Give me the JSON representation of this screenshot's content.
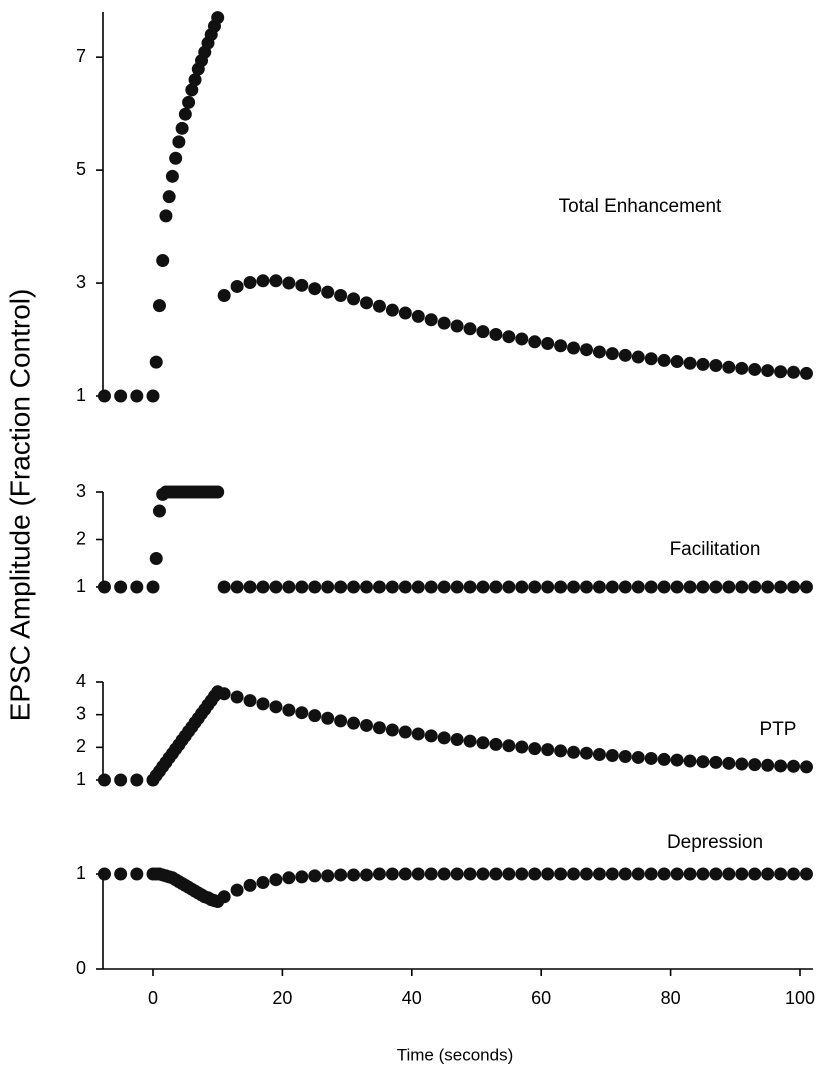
{
  "ylabel": "EPSC Amplitude (Fraction Control)",
  "chart_data": [
    {
      "type": "scatter",
      "label": "Total Enhancement",
      "color": "#111111",
      "xlim": [
        -8,
        102
      ],
      "ylim": [
        1,
        7.8
      ],
      "yticks": [
        1,
        3,
        5,
        7
      ],
      "x": [
        -7.5,
        -5,
        -2.5,
        0,
        0.5,
        1,
        1.5,
        2,
        2.5,
        3,
        3.5,
        4,
        4.5,
        5,
        5.5,
        6,
        6.5,
        7,
        7.5,
        8,
        8.5,
        9,
        9.5,
        10,
        11,
        13,
        15,
        17,
        19,
        21,
        23,
        25,
        27,
        29,
        31,
        33,
        35,
        37,
        39,
        41,
        43,
        45,
        47,
        49,
        51,
        53,
        55,
        57,
        59,
        61,
        63,
        65,
        67,
        69,
        71,
        73,
        75,
        77,
        79,
        81,
        83,
        85,
        87,
        89,
        91,
        93,
        95,
        97,
        99,
        101
      ],
      "values": [
        1,
        1,
        1,
        1,
        1.6,
        2.6,
        3.4,
        4.19,
        4.53,
        4.89,
        5.21,
        5.5,
        5.74,
        5.99,
        6.2,
        6.42,
        6.6,
        6.79,
        6.94,
        7.09,
        7.25,
        7.4,
        7.55,
        7.7,
        2.78,
        2.94,
        3.01,
        3.04,
        3.04,
        3.0,
        2.96,
        2.9,
        2.84,
        2.78,
        2.72,
        2.65,
        2.59,
        2.52,
        2.47,
        2.41,
        2.35,
        2.29,
        2.24,
        2.19,
        2.14,
        2.09,
        2.05,
        2.01,
        1.96,
        1.93,
        1.89,
        1.85,
        1.82,
        1.78,
        1.75,
        1.72,
        1.69,
        1.66,
        1.63,
        1.61,
        1.58,
        1.56,
        1.54,
        1.51,
        1.49,
        1.47,
        1.45,
        1.43,
        1.42,
        1.4
      ]
    },
    {
      "type": "scatter",
      "label": "Facilitation",
      "color": "#111111",
      "xlim": [
        -8,
        102
      ],
      "ylim": [
        1,
        3
      ],
      "yticks": [
        1,
        2,
        3
      ],
      "x": [
        -7.5,
        -5,
        -2.5,
        0,
        0.5,
        1,
        1.5,
        2,
        2.5,
        3,
        3.5,
        4,
        4.5,
        5,
        5.5,
        6,
        6.5,
        7,
        7.5,
        8,
        8.5,
        9,
        9.5,
        10,
        11,
        13,
        15,
        17,
        19,
        21,
        23,
        25,
        27,
        29,
        31,
        33,
        35,
        37,
        39,
        41,
        43,
        45,
        47,
        49,
        51,
        53,
        55,
        57,
        59,
        61,
        63,
        65,
        67,
        69,
        71,
        73,
        75,
        77,
        79,
        81,
        83,
        85,
        87,
        89,
        91,
        93,
        95,
        97,
        99,
        101
      ],
      "values": [
        1,
        1,
        1,
        1,
        1.6,
        2.6,
        2.95,
        3,
        3,
        3,
        3,
        3,
        3,
        3,
        3,
        3,
        3,
        3,
        3,
        3,
        3,
        3,
        3,
        3,
        1,
        1,
        1,
        1,
        1,
        1,
        1,
        1,
        1,
        1,
        1,
        1,
        1,
        1,
        1,
        1,
        1,
        1,
        1,
        1,
        1,
        1,
        1,
        1,
        1,
        1,
        1,
        1,
        1,
        1,
        1,
        1,
        1,
        1,
        1,
        1,
        1,
        1,
        1,
        1,
        1,
        1,
        1,
        1,
        1,
        1
      ]
    },
    {
      "type": "scatter",
      "label": "PTP",
      "color": "#111111",
      "xlim": [
        -8,
        102
      ],
      "ylim": [
        1,
        4
      ],
      "yticks": [
        1,
        2,
        3,
        4
      ],
      "x": [
        -7.5,
        -5,
        -2.5,
        0,
        0.5,
        1,
        1.5,
        2,
        2.5,
        3,
        3.5,
        4,
        4.5,
        5,
        5.5,
        6,
        6.5,
        7,
        7.5,
        8,
        8.5,
        9,
        9.5,
        10,
        11,
        13,
        15,
        17,
        19,
        21,
        23,
        25,
        27,
        29,
        31,
        33,
        35,
        37,
        39,
        41,
        43,
        45,
        47,
        49,
        51,
        53,
        55,
        57,
        59,
        61,
        63,
        65,
        67,
        69,
        71,
        73,
        75,
        77,
        79,
        81,
        83,
        85,
        87,
        89,
        91,
        93,
        95,
        97,
        99,
        101
      ],
      "values": [
        1,
        1,
        1,
        1,
        1.14,
        1.27,
        1.41,
        1.54,
        1.68,
        1.81,
        1.95,
        2.08,
        2.22,
        2.35,
        2.49,
        2.62,
        2.76,
        2.89,
        3.03,
        3.16,
        3.3,
        3.43,
        3.57,
        3.7,
        3.64,
        3.54,
        3.43,
        3.33,
        3.24,
        3.14,
        3.06,
        2.97,
        2.89,
        2.81,
        2.74,
        2.67,
        2.6,
        2.53,
        2.47,
        2.41,
        2.35,
        2.29,
        2.24,
        2.19,
        2.14,
        2.09,
        2.05,
        2.01,
        1.96,
        1.93,
        1.89,
        1.85,
        1.82,
        1.78,
        1.75,
        1.72,
        1.69,
        1.66,
        1.63,
        1.61,
        1.58,
        1.56,
        1.54,
        1.51,
        1.49,
        1.47,
        1.45,
        1.43,
        1.42,
        1.4
      ]
    },
    {
      "type": "scatter",
      "label": "Depression",
      "color": "#111111",
      "xlim": [
        -8,
        102
      ],
      "ylim": [
        0,
        1
      ],
      "yticks": [
        0,
        1
      ],
      "xticks": [
        0,
        20,
        40,
        60,
        80,
        100
      ],
      "xlabel": "Time (seconds)",
      "x": [
        -7.5,
        -5,
        -2.5,
        0,
        0.5,
        1,
        1.5,
        2,
        2.5,
        3,
        3.5,
        4,
        4.5,
        5,
        5.5,
        6,
        6.5,
        7,
        7.5,
        8,
        8.5,
        9,
        9.5,
        10,
        11,
        13,
        15,
        17,
        19,
        21,
        23,
        25,
        27,
        29,
        31,
        33,
        35,
        37,
        39,
        41,
        43,
        45,
        47,
        49,
        51,
        53,
        55,
        57,
        59,
        61,
        63,
        65,
        67,
        69,
        71,
        73,
        75,
        77,
        79,
        81,
        83,
        85,
        87,
        89,
        91,
        93,
        95,
        97,
        99,
        101
      ],
      "values": [
        1,
        1,
        1,
        1,
        1,
        1,
        0.99,
        0.98,
        0.97,
        0.96,
        0.94,
        0.92,
        0.9,
        0.88,
        0.86,
        0.84,
        0.82,
        0.8,
        0.78,
        0.76,
        0.75,
        0.73,
        0.72,
        0.71,
        0.76,
        0.83,
        0.88,
        0.91,
        0.94,
        0.96,
        0.97,
        0.98,
        0.98,
        0.99,
        0.99,
        0.99,
        1,
        1,
        1,
        1,
        1,
        1,
        1,
        1,
        1,
        1,
        1,
        1,
        1,
        1,
        1,
        1,
        1,
        1,
        1,
        1,
        1,
        1,
        1,
        1,
        1,
        1,
        1,
        1,
        1,
        1,
        1,
        1,
        1,
        1
      ]
    }
  ]
}
